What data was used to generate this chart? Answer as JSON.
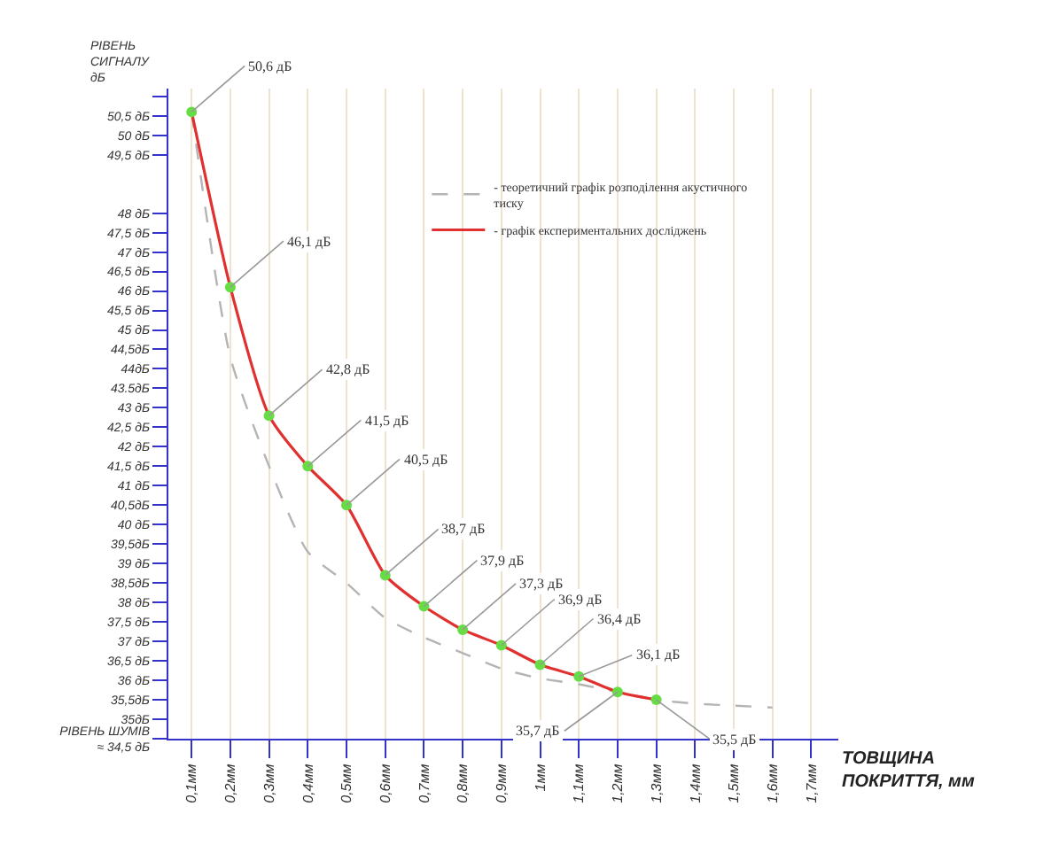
{
  "chart_data": {
    "type": "line",
    "ylabel": "РІВЕНЬ\nСИГНАЛУ\nдБ",
    "xlabel": "ТОВЩИНА\nПОКРИТТЯ, мм",
    "categories": [
      "0,1мм",
      "0,2мм",
      "0,3мм",
      "0,4мм",
      "0,5мм",
      "0,6мм",
      "0,7мм",
      "0,8мм",
      "0,9мм",
      "1мм",
      "1,1мм",
      "1,2мм",
      "1,3мм",
      "1,4мм",
      "1,5мм",
      "1,6мм",
      "1,7мм"
    ],
    "series": [
      {
        "name": "- теоретичний графік розподілення акустичного\nтиску",
        "color": "#b4b4b4",
        "line_style": "dashed",
        "marker": "none",
        "values": [
          50.6,
          44.3,
          41.5,
          39.3,
          38.5,
          37.6,
          37.1,
          36.7,
          36.3,
          36.05,
          35.9,
          35.7,
          35.5,
          35.4,
          35.35,
          35.3,
          null
        ]
      },
      {
        "name": "- графік експериментальних досліджень",
        "color": "#e03030",
        "line_style": "solid",
        "marker": "none",
        "values": [
          50.6,
          46.1,
          42.8,
          41.5,
          40.5,
          38.7,
          37.9,
          37.3,
          36.9,
          36.4,
          36.1,
          35.7,
          35.5,
          null,
          null,
          null,
          null
        ]
      },
      {
        "type": "scatter",
        "color": "#66dd44",
        "marker": "circle",
        "values": [
          50.6,
          46.1,
          42.8,
          41.5,
          40.5,
          38.7,
          37.9,
          37.3,
          36.9,
          36.4,
          36.1,
          35.7,
          35.5,
          null,
          null,
          null,
          null
        ],
        "value_labels": [
          "50,6 дБ",
          "46,1 дБ",
          "42,8 дБ",
          "41,5 дБ",
          "40,5 дБ",
          "38,7 дБ",
          "37,9 дБ",
          "37,3 дБ",
          "36,9 дБ",
          "36,4 дБ",
          "36,1 дБ",
          "35,7 дБ",
          "35,5 дБ",
          null,
          null,
          null,
          null
        ]
      }
    ],
    "ylim": [
      34.5,
      51.2
    ],
    "yticks": [
      {
        "value": 51,
        "label": null
      },
      {
        "value": 50.5,
        "label": "50,5 дБ"
      },
      {
        "value": 50,
        "label": "50 дБ"
      },
      {
        "value": 49.5,
        "label": "49,5 дБ"
      },
      {
        "value": 48,
        "label": "48 дБ"
      },
      {
        "value": 47.5,
        "label": "47,5 дБ"
      },
      {
        "value": 47,
        "label": "47 дБ"
      },
      {
        "value": 46.5,
        "label": "46,5 дБ"
      },
      {
        "value": 46,
        "label": "46 дБ"
      },
      {
        "value": 45.5,
        "label": "45,5 дБ"
      },
      {
        "value": 45,
        "label": "45 дБ"
      },
      {
        "value": 44.5,
        "label": "44,5дБ"
      },
      {
        "value": 44,
        "label": "44дБ"
      },
      {
        "value": 43.5,
        "label": "43.5дБ"
      },
      {
        "value": 43,
        "label": "43 дБ"
      },
      {
        "value": 42.5,
        "label": "42,5 дБ"
      },
      {
        "value": 42,
        "label": "42 дБ"
      },
      {
        "value": 41.5,
        "label": "41,5 дБ"
      },
      {
        "value": 41,
        "label": "41 дБ"
      },
      {
        "value": 40.5,
        "label": "40,5дБ"
      },
      {
        "value": 40,
        "label": "40 дБ"
      },
      {
        "value": 39.5,
        "label": "39,5дБ"
      },
      {
        "value": 39,
        "label": "39 дБ"
      },
      {
        "value": 38.5,
        "label": "38,5дБ"
      },
      {
        "value": 38,
        "label": "38 дБ"
      },
      {
        "value": 37.5,
        "label": "37,5 дБ"
      },
      {
        "value": 37,
        "label": "37 дБ"
      },
      {
        "value": 36.5,
        "label": "36,5 дБ"
      },
      {
        "value": 36,
        "label": "36 дБ"
      },
      {
        "value": 35.5,
        "label": "35,5дБ"
      },
      {
        "value": 35,
        "label": "35дБ"
      },
      {
        "value": 34.5,
        "label": "РІВЕНЬ ШУМІВ\n≈ 34,5 дБ"
      }
    ],
    "grid": "x",
    "legend": "top right"
  }
}
